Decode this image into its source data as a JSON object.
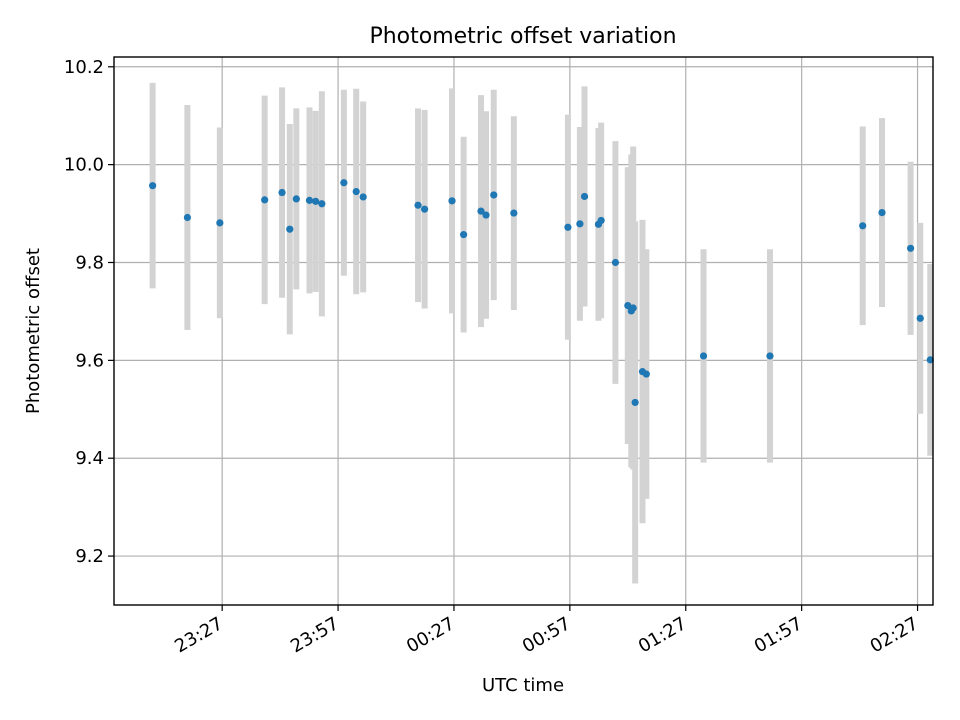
{
  "chart_data": {
    "type": "scatter",
    "title": "Photometric offset variation",
    "xlabel": "UTC time",
    "ylabel": "Photometric offset",
    "x_unit": "minutes since 23:27 UTC",
    "xlim": [
      -28,
      184
    ],
    "ylim": [
      9.1,
      10.22
    ],
    "x_ticks": [
      {
        "value": 0,
        "label": "23:27"
      },
      {
        "value": 30,
        "label": "23:57"
      },
      {
        "value": 60,
        "label": "00:27"
      },
      {
        "value": 90,
        "label": "00:57"
      },
      {
        "value": 120,
        "label": "01:27"
      },
      {
        "value": 150,
        "label": "01:57"
      },
      {
        "value": 180,
        "label": "02:27"
      }
    ],
    "y_ticks": [
      9.2,
      9.4,
      9.6,
      9.8,
      10.0,
      10.2
    ],
    "y_tick_labels": [
      "9.2",
      "9.4",
      "9.6",
      "9.8",
      "10.0",
      "10.2"
    ],
    "grid": true,
    "point_color": "#1f77b4",
    "errorbar_color": "#d3d3d3",
    "points": [
      {
        "x": -18.0,
        "y": 9.957,
        "err": 0.21
      },
      {
        "x": -9.0,
        "y": 9.892,
        "err": 0.23
      },
      {
        "x": -0.6,
        "y": 9.881,
        "err": 0.195
      },
      {
        "x": 11.0,
        "y": 9.928,
        "err": 0.213
      },
      {
        "x": 15.5,
        "y": 9.943,
        "err": 0.215
      },
      {
        "x": 17.5,
        "y": 9.868,
        "err": 0.215
      },
      {
        "x": 19.2,
        "y": 9.93,
        "err": 0.185
      },
      {
        "x": 22.6,
        "y": 9.927,
        "err": 0.19
      },
      {
        "x": 24.2,
        "y": 9.925,
        "err": 0.185
      },
      {
        "x": 25.8,
        "y": 9.92,
        "err": 0.23
      },
      {
        "x": 31.5,
        "y": 9.963,
        "err": 0.19
      },
      {
        "x": 34.7,
        "y": 9.945,
        "err": 0.21
      },
      {
        "x": 36.5,
        "y": 9.934,
        "err": 0.195
      },
      {
        "x": 50.7,
        "y": 9.917,
        "err": 0.198
      },
      {
        "x": 52.4,
        "y": 9.909,
        "err": 0.203
      },
      {
        "x": 59.5,
        "y": 9.926,
        "err": 0.23
      },
      {
        "x": 62.5,
        "y": 9.857,
        "err": 0.2
      },
      {
        "x": 67.0,
        "y": 9.905,
        "err": 0.237
      },
      {
        "x": 68.3,
        "y": 9.897,
        "err": 0.212
      },
      {
        "x": 70.3,
        "y": 9.938,
        "err": 0.215
      },
      {
        "x": 75.5,
        "y": 9.901,
        "err": 0.198
      },
      {
        "x": 89.5,
        "y": 9.872,
        "err": 0.23
      },
      {
        "x": 92.6,
        "y": 9.879,
        "err": 0.198
      },
      {
        "x": 93.8,
        "y": 9.935,
        "err": 0.225
      },
      {
        "x": 97.4,
        "y": 9.878,
        "err": 0.197
      },
      {
        "x": 98.1,
        "y": 9.886,
        "err": 0.2
      },
      {
        "x": 101.8,
        "y": 9.8,
        "err": 0.248
      },
      {
        "x": 105.0,
        "y": 9.712,
        "err": 0.283
      },
      {
        "x": 105.9,
        "y": 9.701,
        "err": 0.32
      },
      {
        "x": 106.4,
        "y": 9.707,
        "err": 0.33
      },
      {
        "x": 106.9,
        "y": 9.514,
        "err": 0.37
      },
      {
        "x": 108.8,
        "y": 9.577,
        "err": 0.31
      },
      {
        "x": 109.8,
        "y": 9.572,
        "err": 0.255
      },
      {
        "x": 124.6,
        "y": 9.609,
        "err": 0.218
      },
      {
        "x": 141.8,
        "y": 9.609,
        "err": 0.218
      },
      {
        "x": 165.8,
        "y": 9.875,
        "err": 0.203
      },
      {
        "x": 170.8,
        "y": 9.902,
        "err": 0.193
      },
      {
        "x": 178.2,
        "y": 9.829,
        "err": 0.177
      },
      {
        "x": 180.7,
        "y": 9.686,
        "err": 0.195
      },
      {
        "x": 183.3,
        "y": 9.601,
        "err": 0.196
      }
    ]
  }
}
